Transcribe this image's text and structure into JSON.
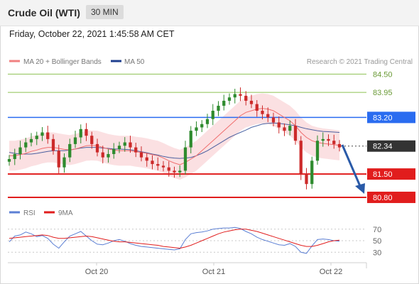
{
  "header": {
    "title": "Crude Oil (WTI)",
    "timeframe": "30 MIN"
  },
  "datetime": "Friday, October 22, 2021 1:45:58 AM CET",
  "legend": {
    "ma20": "MA 20 + Bollinger Bands",
    "ma50": "MA 50",
    "source": "Research © 2021 Trading Central",
    "rsi": "RSI",
    "ma9": "9MA"
  },
  "colors": {
    "ma20": "#f06e6e",
    "bollinger_fill": "#fadadd",
    "ma50": "#1f3f8f",
    "resistance_green": "#8cc152",
    "pivot_blue": "#2a6cf0",
    "support_red": "#e11d1d",
    "candle_up": "#2e8b2e",
    "candle_down": "#cc2a2a",
    "arrow": "#2a5aa8",
    "rsi_line": "#5b7fd4",
    "rsi_ma": "#e11d1d"
  },
  "chart_data": [
    {
      "type": "line",
      "title": "",
      "x_ticks": [
        "Oct 20",
        "Oct 21",
        "Oct 22"
      ],
      "ylim": [
        80.65,
        84.7
      ],
      "levels": [
        {
          "label": "84.50",
          "value": 84.5,
          "kind": "resistance"
        },
        {
          "label": "83.95",
          "value": 83.95,
          "kind": "resistance"
        },
        {
          "label": "83.20",
          "value": 83.2,
          "kind": "pivot"
        },
        {
          "label": "82.34",
          "value": 82.34,
          "kind": "last"
        },
        {
          "label": "81.50",
          "value": 81.5,
          "kind": "support"
        },
        {
          "label": "80.80",
          "value": 80.8,
          "kind": "support"
        }
      ],
      "series": [
        {
          "name": "MA 20 + Bollinger Bands"
        },
        {
          "name": "MA 50"
        }
      ],
      "close": [
        81.95,
        82.1,
        82.3,
        82.45,
        82.55,
        82.65,
        82.75,
        82.55,
        82.2,
        81.7,
        82.0,
        82.4,
        82.6,
        82.85,
        82.65,
        82.4,
        82.15,
        82.0,
        82.1,
        82.25,
        82.35,
        82.45,
        82.3,
        82.15,
        82.0,
        81.9,
        81.8,
        81.75,
        81.7,
        81.6,
        81.55,
        81.6,
        82.3,
        82.8,
        82.9,
        83.0,
        83.15,
        83.4,
        83.55,
        83.7,
        83.8,
        83.9,
        83.85,
        83.7,
        83.6,
        83.4,
        83.3,
        83.2,
        83.05,
        82.9,
        82.8,
        82.95,
        82.5,
        81.5,
        81.2,
        81.9,
        82.5,
        82.55,
        82.5,
        82.4,
        82.3
      ],
      "ma20": [
        82.05,
        82.05,
        82.08,
        82.12,
        82.18,
        82.22,
        82.27,
        82.3,
        82.3,
        82.27,
        82.24,
        82.22,
        82.25,
        82.3,
        82.35,
        82.36,
        82.35,
        82.3,
        82.25,
        82.22,
        82.2,
        82.2,
        82.2,
        82.17,
        82.15,
        82.12,
        82.08,
        82.05,
        81.98,
        81.9,
        81.83,
        81.78,
        81.85,
        81.95,
        82.05,
        82.2,
        82.35,
        82.5,
        82.65,
        82.8,
        82.95,
        83.1,
        83.25,
        83.35,
        83.4,
        83.45,
        83.47,
        83.45,
        83.4,
        83.3,
        83.2,
        83.1,
        82.95,
        82.75,
        82.6,
        82.5,
        82.45,
        82.42,
        82.4,
        82.38,
        82.36
      ],
      "ma50": [
        82.15,
        82.12,
        82.1,
        82.1,
        82.1,
        82.12,
        82.15,
        82.18,
        82.2,
        82.2,
        82.2,
        82.22,
        82.25,
        82.28,
        82.3,
        82.3,
        82.3,
        82.28,
        82.27,
        82.25,
        82.25,
        82.24,
        82.23,
        82.2,
        82.17,
        82.14,
        82.1,
        82.07,
        82.03,
        82.0,
        81.98,
        81.97,
        81.98,
        82.0,
        82.05,
        82.12,
        82.2,
        82.3,
        82.4,
        82.5,
        82.6,
        82.68,
        82.75,
        82.82,
        82.9,
        82.95,
        83.0,
        83.02,
        83.03,
        83.02,
        83.0,
        82.98,
        82.95,
        82.9,
        82.86,
        82.83,
        82.8,
        82.78,
        82.77,
        82.76,
        82.75
      ]
    },
    {
      "type": "line",
      "title": "",
      "ylim": [
        18,
        82
      ],
      "y_ticks": [
        70,
        50,
        30
      ],
      "series": [
        {
          "name": "RSI",
          "values": [
            48,
            58,
            60,
            65,
            62,
            57,
            59,
            54,
            44,
            37,
            48,
            58,
            62,
            66,
            58,
            50,
            44,
            43,
            46,
            50,
            52,
            49,
            45,
            42,
            40,
            39,
            38,
            37,
            36,
            35,
            34,
            36,
            52,
            62,
            64,
            65,
            67,
            70,
            71,
            72,
            72,
            73,
            71,
            66,
            62,
            56,
            52,
            49,
            46,
            43,
            42,
            45,
            40,
            30,
            28,
            41,
            52,
            53,
            52,
            50,
            49
          ]
        },
        {
          "name": "9MA",
          "values": [
            54,
            55,
            56,
            57,
            58,
            59,
            60,
            59,
            56,
            54,
            54,
            55,
            56,
            57,
            58,
            57,
            55,
            53,
            51,
            49,
            48,
            48,
            47,
            46,
            45,
            44,
            43,
            42,
            40,
            39,
            38,
            37,
            39,
            42,
            46,
            50,
            54,
            58,
            62,
            65,
            67,
            69,
            70,
            70,
            68,
            66,
            63,
            60,
            57,
            54,
            51,
            48,
            45,
            42,
            40,
            40,
            42,
            45,
            48,
            50,
            51
          ]
        }
      ]
    }
  ]
}
